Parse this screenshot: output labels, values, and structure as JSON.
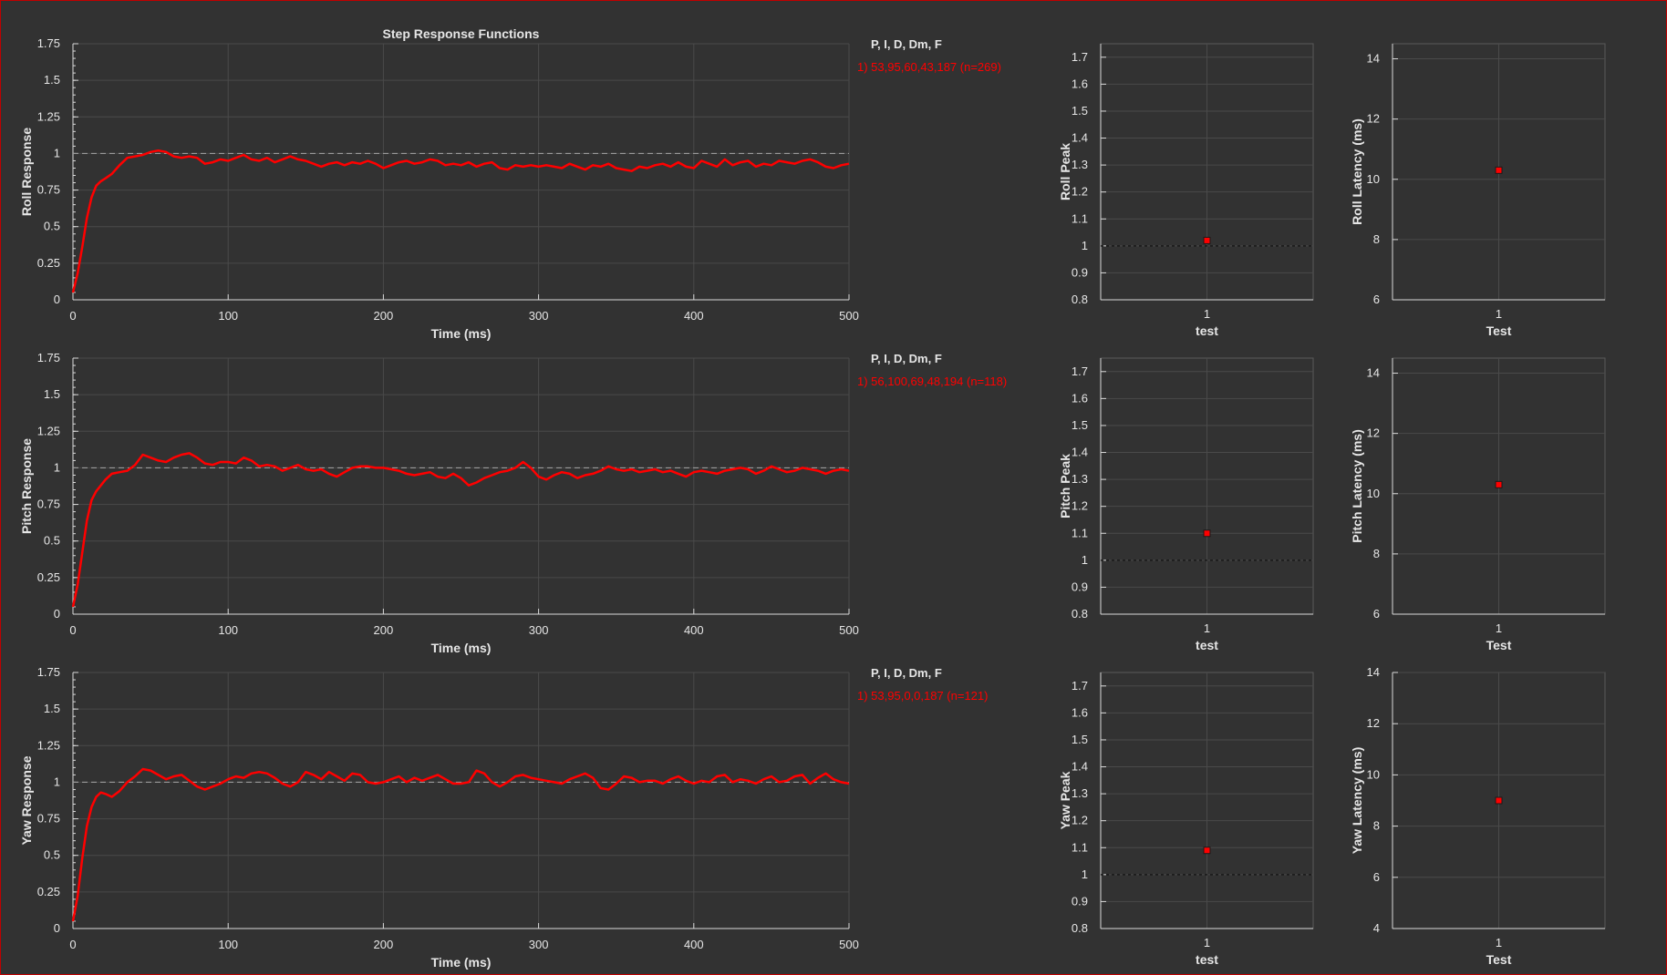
{
  "chart_data": [
    {
      "type": "line",
      "title": "Step Response Functions",
      "xlabel": "Time (ms)",
      "ylabel": "Roll Response",
      "xlim": [
        0,
        500
      ],
      "ylim": [
        0,
        1.75
      ],
      "xticks": [
        "0",
        "100",
        "200",
        "300",
        "400",
        "500"
      ],
      "yticks": [
        "0",
        "0.25",
        "0.5",
        "0.75",
        "1",
        "1.25",
        "1.5",
        "1.75"
      ],
      "reference_line": 1,
      "grid": true,
      "legend_title": "P, I, D, Dm, F",
      "legend_entry": "1) 53,95,60,43,187  (n=269)",
      "series": [
        {
          "color": "#ff0000",
          "x": [
            0,
            3,
            6,
            9,
            12,
            15,
            18,
            21,
            25,
            30,
            35,
            40,
            45,
            50,
            55,
            60,
            65,
            70,
            75,
            80,
            85,
            90,
            95,
            100,
            105,
            110,
            115,
            120,
            125,
            130,
            135,
            140,
            145,
            150,
            155,
            160,
            165,
            170,
            175,
            180,
            185,
            190,
            195,
            200,
            205,
            210,
            215,
            220,
            225,
            230,
            235,
            240,
            245,
            250,
            255,
            260,
            265,
            270,
            275,
            280,
            285,
            290,
            295,
            300,
            305,
            310,
            315,
            320,
            325,
            330,
            335,
            340,
            345,
            350,
            355,
            360,
            365,
            370,
            375,
            380,
            385,
            390,
            395,
            400,
            405,
            410,
            415,
            420,
            425,
            430,
            435,
            440,
            445,
            450,
            455,
            460,
            465,
            470,
            475,
            480,
            485,
            490,
            495,
            500
          ],
          "y": [
            0.05,
            0.18,
            0.36,
            0.56,
            0.7,
            0.78,
            0.81,
            0.83,
            0.86,
            0.92,
            0.97,
            0.98,
            0.99,
            1.01,
            1.02,
            1.01,
            0.98,
            0.97,
            0.98,
            0.97,
            0.93,
            0.94,
            0.96,
            0.95,
            0.97,
            0.99,
            0.96,
            0.95,
            0.97,
            0.94,
            0.96,
            0.98,
            0.96,
            0.95,
            0.93,
            0.91,
            0.93,
            0.94,
            0.92,
            0.94,
            0.93,
            0.95,
            0.93,
            0.9,
            0.92,
            0.94,
            0.95,
            0.93,
            0.94,
            0.96,
            0.95,
            0.92,
            0.93,
            0.92,
            0.94,
            0.91,
            0.93,
            0.94,
            0.9,
            0.89,
            0.92,
            0.91,
            0.92,
            0.91,
            0.92,
            0.91,
            0.9,
            0.93,
            0.91,
            0.89,
            0.92,
            0.91,
            0.93,
            0.9,
            0.89,
            0.88,
            0.91,
            0.9,
            0.92,
            0.93,
            0.91,
            0.94,
            0.91,
            0.9,
            0.95,
            0.93,
            0.91,
            0.96,
            0.92,
            0.94,
            0.95,
            0.91,
            0.93,
            0.92,
            0.95,
            0.94,
            0.93,
            0.95,
            0.96,
            0.94,
            0.91,
            0.9,
            0.92,
            0.93
          ]
        }
      ]
    },
    {
      "type": "scatter",
      "ylabel": "Roll Peak",
      "xlabel": "test",
      "xticks": [
        "1"
      ],
      "ylim": [
        0.8,
        1.75
      ],
      "yticks": [
        "0.8",
        "0.9",
        "1",
        "1.1",
        "1.2",
        "1.3",
        "1.4",
        "1.5",
        "1.6",
        "1.7"
      ],
      "reference_line": 1,
      "grid": true,
      "points": [
        {
          "x": 1,
          "y": 1.02
        }
      ]
    },
    {
      "type": "scatter",
      "ylabel": "Roll Latency (ms)",
      "xlabel": "Test",
      "xticks": [
        "1"
      ],
      "ylim": [
        6,
        14.5
      ],
      "yticks": [
        "6",
        "8",
        "10",
        "12",
        "14"
      ],
      "grid": true,
      "points": [
        {
          "x": 1,
          "y": 10.3
        }
      ]
    },
    {
      "type": "line",
      "xlabel": "Time (ms)",
      "ylabel": "Pitch Response",
      "xlim": [
        0,
        500
      ],
      "ylim": [
        0,
        1.75
      ],
      "xticks": [
        "0",
        "100",
        "200",
        "300",
        "400",
        "500"
      ],
      "yticks": [
        "0",
        "0.25",
        "0.5",
        "0.75",
        "1",
        "1.25",
        "1.5",
        "1.75"
      ],
      "reference_line": 1,
      "grid": true,
      "legend_title": "P, I, D, Dm, F",
      "legend_entry": "1) 56,100,69,48,194  (n=118)",
      "series": [
        {
          "color": "#ff0000",
          "x": [
            0,
            3,
            6,
            9,
            12,
            15,
            18,
            21,
            25,
            30,
            35,
            40,
            45,
            50,
            55,
            60,
            65,
            70,
            75,
            80,
            85,
            90,
            95,
            100,
            105,
            110,
            115,
            120,
            125,
            130,
            135,
            140,
            145,
            150,
            155,
            160,
            165,
            170,
            175,
            180,
            185,
            190,
            195,
            200,
            205,
            210,
            215,
            220,
            225,
            230,
            235,
            240,
            245,
            250,
            255,
            260,
            265,
            270,
            275,
            280,
            285,
            290,
            295,
            300,
            305,
            310,
            315,
            320,
            325,
            330,
            335,
            340,
            345,
            350,
            355,
            360,
            365,
            370,
            375,
            380,
            385,
            390,
            395,
            400,
            405,
            410,
            415,
            420,
            425,
            430,
            435,
            440,
            445,
            450,
            455,
            460,
            465,
            470,
            475,
            480,
            485,
            490,
            495,
            500
          ],
          "y": [
            0.05,
            0.2,
            0.42,
            0.64,
            0.78,
            0.84,
            0.88,
            0.92,
            0.96,
            0.97,
            0.98,
            1.02,
            1.09,
            1.07,
            1.05,
            1.04,
            1.07,
            1.09,
            1.1,
            1.07,
            1.03,
            1.02,
            1.04,
            1.04,
            1.03,
            1.07,
            1.05,
            1.01,
            1.02,
            1.01,
            0.98,
            1.0,
            1.02,
            0.99,
            0.98,
            0.99,
            0.96,
            0.94,
            0.97,
            1.0,
            1.01,
            1.01,
            1.0,
            1.0,
            0.99,
            0.98,
            0.96,
            0.95,
            0.96,
            0.97,
            0.94,
            0.93,
            0.96,
            0.93,
            0.88,
            0.9,
            0.93,
            0.95,
            0.97,
            0.98,
            1.0,
            1.04,
            1.0,
            0.94,
            0.92,
            0.95,
            0.97,
            0.96,
            0.93,
            0.95,
            0.96,
            0.98,
            1.01,
            0.99,
            0.98,
            0.99,
            0.97,
            0.98,
            0.99,
            0.97,
            0.98,
            0.96,
            0.94,
            0.97,
            0.98,
            0.97,
            0.96,
            0.98,
            0.99,
            1.0,
            0.99,
            0.96,
            0.98,
            1.01,
            0.99,
            0.97,
            0.98,
            1.0,
            0.99,
            0.98,
            0.96,
            0.98,
            0.99,
            0.98
          ]
        }
      ]
    },
    {
      "type": "scatter",
      "ylabel": "Pitch Peak",
      "xlabel": "test",
      "xticks": [
        "1"
      ],
      "ylim": [
        0.8,
        1.75
      ],
      "yticks": [
        "0.8",
        "0.9",
        "1",
        "1.1",
        "1.2",
        "1.3",
        "1.4",
        "1.5",
        "1.6",
        "1.7"
      ],
      "reference_line": 1,
      "grid": true,
      "points": [
        {
          "x": 1,
          "y": 1.1
        }
      ]
    },
    {
      "type": "scatter",
      "ylabel": "Pitch Latency (ms)",
      "xlabel": "Test",
      "xticks": [
        "1"
      ],
      "ylim": [
        6,
        14.5
      ],
      "yticks": [
        "6",
        "8",
        "10",
        "12",
        "14"
      ],
      "grid": true,
      "points": [
        {
          "x": 1,
          "y": 10.3
        }
      ]
    },
    {
      "type": "line",
      "xlabel": "Time (ms)",
      "ylabel": "Yaw Response",
      "xlim": [
        0,
        500
      ],
      "ylim": [
        0,
        1.75
      ],
      "xticks": [
        "0",
        "100",
        "200",
        "300",
        "400",
        "500"
      ],
      "yticks": [
        "0",
        "0.25",
        "0.5",
        "0.75",
        "1",
        "1.25",
        "1.5",
        "1.75"
      ],
      "reference_line": 1,
      "grid": true,
      "legend_title": "P, I, D, Dm, F",
      "legend_entry": "1) 53,95,0,0,187  (n=121)",
      "series": [
        {
          "color": "#ff0000",
          "x": [
            0,
            3,
            6,
            9,
            12,
            15,
            18,
            21,
            25,
            30,
            35,
            40,
            45,
            50,
            55,
            60,
            65,
            70,
            75,
            80,
            85,
            90,
            95,
            100,
            105,
            110,
            115,
            120,
            125,
            130,
            135,
            140,
            145,
            150,
            155,
            160,
            165,
            170,
            175,
            180,
            185,
            190,
            195,
            200,
            205,
            210,
            215,
            220,
            225,
            230,
            235,
            240,
            245,
            250,
            255,
            260,
            265,
            270,
            275,
            280,
            285,
            290,
            295,
            300,
            305,
            310,
            315,
            320,
            325,
            330,
            335,
            340,
            345,
            350,
            355,
            360,
            365,
            370,
            375,
            380,
            385,
            390,
            395,
            400,
            405,
            410,
            415,
            420,
            425,
            430,
            435,
            440,
            445,
            450,
            455,
            460,
            465,
            470,
            475,
            480,
            485,
            490,
            495,
            500
          ],
          "y": [
            0.05,
            0.22,
            0.48,
            0.7,
            0.83,
            0.9,
            0.93,
            0.92,
            0.9,
            0.94,
            1.0,
            1.04,
            1.09,
            1.08,
            1.05,
            1.02,
            1.04,
            1.05,
            1.01,
            0.97,
            0.95,
            0.97,
            0.99,
            1.02,
            1.04,
            1.03,
            1.06,
            1.07,
            1.06,
            1.03,
            0.99,
            0.97,
            1.0,
            1.07,
            1.05,
            1.02,
            1.07,
            1.04,
            1.01,
            1.06,
            1.05,
            1.0,
            0.99,
            1.0,
            1.02,
            1.04,
            1.0,
            1.03,
            1.01,
            1.03,
            1.05,
            1.02,
            0.99,
            0.99,
            1.0,
            1.08,
            1.06,
            1.0,
            0.97,
            1.0,
            1.04,
            1.05,
            1.03,
            1.02,
            1.01,
            1.0,
            0.99,
            1.02,
            1.04,
            1.06,
            1.03,
            0.96,
            0.95,
            0.99,
            1.04,
            1.03,
            1.0,
            1.01,
            1.01,
            0.99,
            1.02,
            1.04,
            1.01,
            0.99,
            1.01,
            1.0,
            1.04,
            1.05,
            1.0,
            1.02,
            1.01,
            0.99,
            1.02,
            1.04,
            1.0,
            1.01,
            1.04,
            1.05,
            0.99,
            1.03,
            1.06,
            1.02,
            1.0,
            0.99
          ]
        }
      ]
    },
    {
      "type": "scatter",
      "ylabel": "Yaw Peak",
      "xlabel": "test",
      "xticks": [
        "1"
      ],
      "ylim": [
        0.8,
        1.75
      ],
      "yticks": [
        "0.8",
        "0.9",
        "1",
        "1.1",
        "1.2",
        "1.3",
        "1.4",
        "1.5",
        "1.6",
        "1.7"
      ],
      "reference_line": 1,
      "grid": true,
      "points": [
        {
          "x": 1,
          "y": 1.09
        }
      ]
    },
    {
      "type": "scatter",
      "ylabel": "Yaw Latency (ms)",
      "xlabel": "Test",
      "xticks": [
        "1"
      ],
      "ylim": [
        4,
        14
      ],
      "yticks": [
        "4",
        "6",
        "8",
        "10",
        "12",
        "14"
      ],
      "grid": true,
      "points": [
        {
          "x": 1,
          "y": 9.0
        }
      ]
    }
  ]
}
